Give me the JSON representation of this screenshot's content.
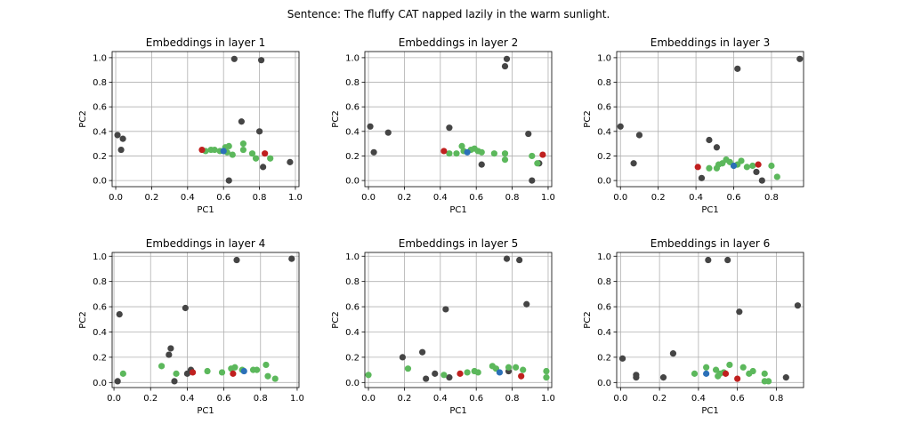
{
  "suptitle": "Sentence: The fluffy CAT napped lazily in the warm sunlight.",
  "colors": {
    "gray": "#454545",
    "green": "#5cb85c",
    "red": "#c0201f",
    "blue": "#2b70b8"
  },
  "chart_data": [
    {
      "type": "scatter",
      "title": "Embeddings in layer 1",
      "xlabel": "PC1",
      "ylabel": "PC2",
      "xlim": [
        -0.02,
        1.02
      ],
      "ylim": [
        -0.05,
        1.05
      ],
      "xticks": [
        "0.0",
        "0.2",
        "0.4",
        "0.6",
        "0.8",
        "1.0"
      ],
      "yticks": [
        "0.0",
        "0.2",
        "0.4",
        "0.6",
        "0.8",
        "1.0"
      ],
      "grid": true,
      "points": [
        {
          "x": 0.01,
          "y": 0.37,
          "c": "gray"
        },
        {
          "x": 0.04,
          "y": 0.34,
          "c": "gray"
        },
        {
          "x": 0.03,
          "y": 0.25,
          "c": "gray"
        },
        {
          "x": 0.66,
          "y": 0.99,
          "c": "gray"
        },
        {
          "x": 0.81,
          "y": 0.98,
          "c": "gray"
        },
        {
          "x": 0.7,
          "y": 0.48,
          "c": "gray"
        },
        {
          "x": 0.8,
          "y": 0.4,
          "c": "gray"
        },
        {
          "x": 0.97,
          "y": 0.15,
          "c": "gray"
        },
        {
          "x": 0.82,
          "y": 0.11,
          "c": "gray"
        },
        {
          "x": 0.63,
          "y": 0.0,
          "c": "gray"
        },
        {
          "x": 0.5,
          "y": 0.24,
          "c": "green"
        },
        {
          "x": 0.53,
          "y": 0.25,
          "c": "green"
        },
        {
          "x": 0.55,
          "y": 0.25,
          "c": "green"
        },
        {
          "x": 0.58,
          "y": 0.24,
          "c": "green"
        },
        {
          "x": 0.61,
          "y": 0.27,
          "c": "green"
        },
        {
          "x": 0.63,
          "y": 0.28,
          "c": "green"
        },
        {
          "x": 0.62,
          "y": 0.23,
          "c": "green"
        },
        {
          "x": 0.65,
          "y": 0.21,
          "c": "green"
        },
        {
          "x": 0.71,
          "y": 0.3,
          "c": "green"
        },
        {
          "x": 0.71,
          "y": 0.25,
          "c": "green"
        },
        {
          "x": 0.76,
          "y": 0.22,
          "c": "green"
        },
        {
          "x": 0.78,
          "y": 0.18,
          "c": "green"
        },
        {
          "x": 0.86,
          "y": 0.18,
          "c": "green"
        },
        {
          "x": 0.48,
          "y": 0.25,
          "c": "red"
        },
        {
          "x": 0.83,
          "y": 0.22,
          "c": "red"
        },
        {
          "x": 0.6,
          "y": 0.24,
          "c": "blue"
        }
      ]
    },
    {
      "type": "scatter",
      "title": "Embeddings in layer 2",
      "xlabel": "PC1",
      "ylabel": "PC2",
      "xlim": [
        -0.02,
        1.02
      ],
      "ylim": [
        -0.05,
        1.05
      ],
      "xticks": [
        "0.0",
        "0.2",
        "0.4",
        "0.6",
        "0.8",
        "1.0"
      ],
      "yticks": [
        "0.0",
        "0.2",
        "0.4",
        "0.6",
        "0.8",
        "1.0"
      ],
      "grid": true,
      "points": [
        {
          "x": 0.01,
          "y": 0.44,
          "c": "gray"
        },
        {
          "x": 0.03,
          "y": 0.23,
          "c": "gray"
        },
        {
          "x": 0.11,
          "y": 0.39,
          "c": "gray"
        },
        {
          "x": 0.45,
          "y": 0.43,
          "c": "gray"
        },
        {
          "x": 0.63,
          "y": 0.13,
          "c": "gray"
        },
        {
          "x": 0.76,
          "y": 0.93,
          "c": "gray"
        },
        {
          "x": 0.77,
          "y": 0.99,
          "c": "gray"
        },
        {
          "x": 0.89,
          "y": 0.38,
          "c": "gray"
        },
        {
          "x": 0.91,
          "y": 0.0,
          "c": "gray"
        },
        {
          "x": 0.95,
          "y": 0.14,
          "c": "gray"
        },
        {
          "x": 0.45,
          "y": 0.22,
          "c": "green"
        },
        {
          "x": 0.49,
          "y": 0.22,
          "c": "green"
        },
        {
          "x": 0.52,
          "y": 0.28,
          "c": "green"
        },
        {
          "x": 0.53,
          "y": 0.24,
          "c": "green"
        },
        {
          "x": 0.57,
          "y": 0.25,
          "c": "green"
        },
        {
          "x": 0.59,
          "y": 0.26,
          "c": "green"
        },
        {
          "x": 0.61,
          "y": 0.24,
          "c": "green"
        },
        {
          "x": 0.63,
          "y": 0.23,
          "c": "green"
        },
        {
          "x": 0.7,
          "y": 0.22,
          "c": "green"
        },
        {
          "x": 0.76,
          "y": 0.22,
          "c": "green"
        },
        {
          "x": 0.76,
          "y": 0.17,
          "c": "green"
        },
        {
          "x": 0.91,
          "y": 0.2,
          "c": "green"
        },
        {
          "x": 0.94,
          "y": 0.14,
          "c": "green"
        },
        {
          "x": 0.42,
          "y": 0.24,
          "c": "red"
        },
        {
          "x": 0.97,
          "y": 0.21,
          "c": "red"
        },
        {
          "x": 0.55,
          "y": 0.23,
          "c": "blue"
        }
      ]
    },
    {
      "type": "scatter",
      "title": "Embeddings in layer 3",
      "xlabel": "PC1",
      "ylabel": "PC2",
      "xlim": [
        -0.02,
        0.97
      ],
      "ylim": [
        -0.05,
        1.05
      ],
      "xticks": [
        "0.0",
        "0.2",
        "0.4",
        "0.6",
        "0.8"
      ],
      "yticks": [
        "0.0",
        "0.2",
        "0.4",
        "0.6",
        "0.8",
        "1.0"
      ],
      "grid": true,
      "points": [
        {
          "x": 0.0,
          "y": 0.44,
          "c": "gray"
        },
        {
          "x": 0.07,
          "y": 0.14,
          "c": "gray"
        },
        {
          "x": 0.1,
          "y": 0.37,
          "c": "gray"
        },
        {
          "x": 0.43,
          "y": 0.02,
          "c": "gray"
        },
        {
          "x": 0.47,
          "y": 0.33,
          "c": "gray"
        },
        {
          "x": 0.51,
          "y": 0.27,
          "c": "gray"
        },
        {
          "x": 0.62,
          "y": 0.91,
          "c": "gray"
        },
        {
          "x": 0.72,
          "y": 0.07,
          "c": "gray"
        },
        {
          "x": 0.75,
          "y": 0.0,
          "c": "gray"
        },
        {
          "x": 0.95,
          "y": 0.99,
          "c": "gray"
        },
        {
          "x": 0.47,
          "y": 0.1,
          "c": "green"
        },
        {
          "x": 0.51,
          "y": 0.1,
          "c": "green"
        },
        {
          "x": 0.52,
          "y": 0.13,
          "c": "green"
        },
        {
          "x": 0.54,
          "y": 0.14,
          "c": "green"
        },
        {
          "x": 0.56,
          "y": 0.17,
          "c": "green"
        },
        {
          "x": 0.58,
          "y": 0.15,
          "c": "green"
        },
        {
          "x": 0.6,
          "y": 0.12,
          "c": "green"
        },
        {
          "x": 0.62,
          "y": 0.13,
          "c": "green"
        },
        {
          "x": 0.64,
          "y": 0.16,
          "c": "green"
        },
        {
          "x": 0.67,
          "y": 0.11,
          "c": "green"
        },
        {
          "x": 0.7,
          "y": 0.12,
          "c": "green"
        },
        {
          "x": 0.8,
          "y": 0.12,
          "c": "green"
        },
        {
          "x": 0.83,
          "y": 0.03,
          "c": "green"
        },
        {
          "x": 0.41,
          "y": 0.11,
          "c": "red"
        },
        {
          "x": 0.73,
          "y": 0.13,
          "c": "red"
        },
        {
          "x": 0.6,
          "y": 0.12,
          "c": "blue"
        }
      ]
    },
    {
      "type": "scatter",
      "title": "Embeddings in layer 4",
      "xlabel": "PC1",
      "ylabel": "PC2",
      "xlim": [
        -0.01,
        1.01
      ],
      "ylim": [
        -0.04,
        1.03
      ],
      "xticks": [
        "0.0",
        "0.2",
        "0.4",
        "0.6",
        "0.8",
        "1.0"
      ],
      "yticks": [
        "0.0",
        "0.2",
        "0.4",
        "0.6",
        "0.8",
        "1.0"
      ],
      "grid": true,
      "points": [
        {
          "x": 0.03,
          "y": 0.54,
          "c": "gray"
        },
        {
          "x": 0.02,
          "y": 0.01,
          "c": "gray"
        },
        {
          "x": 0.3,
          "y": 0.22,
          "c": "gray"
        },
        {
          "x": 0.31,
          "y": 0.27,
          "c": "gray"
        },
        {
          "x": 0.33,
          "y": 0.01,
          "c": "gray"
        },
        {
          "x": 0.39,
          "y": 0.59,
          "c": "gray"
        },
        {
          "x": 0.4,
          "y": 0.07,
          "c": "gray"
        },
        {
          "x": 0.67,
          "y": 0.97,
          "c": "gray"
        },
        {
          "x": 0.97,
          "y": 0.98,
          "c": "gray"
        },
        {
          "x": 0.42,
          "y": 0.1,
          "c": "gray"
        },
        {
          "x": 0.05,
          "y": 0.07,
          "c": "green"
        },
        {
          "x": 0.26,
          "y": 0.13,
          "c": "green"
        },
        {
          "x": 0.34,
          "y": 0.07,
          "c": "green"
        },
        {
          "x": 0.51,
          "y": 0.09,
          "c": "green"
        },
        {
          "x": 0.59,
          "y": 0.08,
          "c": "green"
        },
        {
          "x": 0.64,
          "y": 0.11,
          "c": "green"
        },
        {
          "x": 0.66,
          "y": 0.12,
          "c": "green"
        },
        {
          "x": 0.7,
          "y": 0.1,
          "c": "green"
        },
        {
          "x": 0.76,
          "y": 0.1,
          "c": "green"
        },
        {
          "x": 0.78,
          "y": 0.1,
          "c": "green"
        },
        {
          "x": 0.83,
          "y": 0.14,
          "c": "green"
        },
        {
          "x": 0.84,
          "y": 0.05,
          "c": "green"
        },
        {
          "x": 0.88,
          "y": 0.03,
          "c": "green"
        },
        {
          "x": 0.43,
          "y": 0.08,
          "c": "red"
        },
        {
          "x": 0.65,
          "y": 0.07,
          "c": "red"
        },
        {
          "x": 0.71,
          "y": 0.09,
          "c": "blue"
        }
      ]
    },
    {
      "type": "scatter",
      "title": "Embeddings in layer 5",
      "xlabel": "PC1",
      "ylabel": "PC2",
      "xlim": [
        -0.02,
        1.02
      ],
      "ylim": [
        -0.04,
        1.03
      ],
      "xticks": [
        "0.0",
        "0.2",
        "0.4",
        "0.6",
        "0.8",
        "1.0"
      ],
      "yticks": [
        "0.0",
        "0.2",
        "0.4",
        "0.6",
        "0.8",
        "1.0"
      ],
      "grid": true,
      "points": [
        {
          "x": 0.19,
          "y": 0.2,
          "c": "gray"
        },
        {
          "x": 0.3,
          "y": 0.24,
          "c": "gray"
        },
        {
          "x": 0.32,
          "y": 0.03,
          "c": "gray"
        },
        {
          "x": 0.37,
          "y": 0.07,
          "c": "gray"
        },
        {
          "x": 0.43,
          "y": 0.58,
          "c": "gray"
        },
        {
          "x": 0.45,
          "y": 0.04,
          "c": "gray"
        },
        {
          "x": 0.77,
          "y": 0.98,
          "c": "gray"
        },
        {
          "x": 0.84,
          "y": 0.97,
          "c": "gray"
        },
        {
          "x": 0.88,
          "y": 0.62,
          "c": "gray"
        },
        {
          "x": 0.78,
          "y": 0.09,
          "c": "gray"
        },
        {
          "x": 0.0,
          "y": 0.06,
          "c": "green"
        },
        {
          "x": 0.22,
          "y": 0.11,
          "c": "green"
        },
        {
          "x": 0.42,
          "y": 0.06,
          "c": "green"
        },
        {
          "x": 0.55,
          "y": 0.08,
          "c": "green"
        },
        {
          "x": 0.59,
          "y": 0.09,
          "c": "green"
        },
        {
          "x": 0.61,
          "y": 0.08,
          "c": "green"
        },
        {
          "x": 0.69,
          "y": 0.13,
          "c": "green"
        },
        {
          "x": 0.71,
          "y": 0.11,
          "c": "green"
        },
        {
          "x": 0.78,
          "y": 0.12,
          "c": "green"
        },
        {
          "x": 0.82,
          "y": 0.12,
          "c": "green"
        },
        {
          "x": 0.86,
          "y": 0.1,
          "c": "green"
        },
        {
          "x": 0.99,
          "y": 0.09,
          "c": "green"
        },
        {
          "x": 0.99,
          "y": 0.04,
          "c": "green"
        },
        {
          "x": 0.51,
          "y": 0.07,
          "c": "red"
        },
        {
          "x": 0.85,
          "y": 0.05,
          "c": "red"
        },
        {
          "x": 0.73,
          "y": 0.08,
          "c": "blue"
        }
      ]
    },
    {
      "type": "scatter",
      "title": "Embeddings in layer 6",
      "xlabel": "PC1",
      "ylabel": "PC2",
      "xlim": [
        -0.02,
        0.94
      ],
      "ylim": [
        -0.04,
        1.03
      ],
      "xticks": [
        "0.0",
        "0.2",
        "0.4",
        "0.6",
        "0.8"
      ],
      "yticks": [
        "0.0",
        "0.2",
        "0.4",
        "0.6",
        "0.8",
        "1.0"
      ],
      "grid": true,
      "points": [
        {
          "x": 0.01,
          "y": 0.19,
          "c": "gray"
        },
        {
          "x": 0.08,
          "y": 0.06,
          "c": "gray"
        },
        {
          "x": 0.08,
          "y": 0.04,
          "c": "gray"
        },
        {
          "x": 0.22,
          "y": 0.04,
          "c": "gray"
        },
        {
          "x": 0.27,
          "y": 0.23,
          "c": "gray"
        },
        {
          "x": 0.45,
          "y": 0.97,
          "c": "gray"
        },
        {
          "x": 0.55,
          "y": 0.97,
          "c": "gray"
        },
        {
          "x": 0.61,
          "y": 0.56,
          "c": "gray"
        },
        {
          "x": 0.85,
          "y": 0.04,
          "c": "gray"
        },
        {
          "x": 0.91,
          "y": 0.61,
          "c": "gray"
        },
        {
          "x": 0.38,
          "y": 0.07,
          "c": "green"
        },
        {
          "x": 0.44,
          "y": 0.12,
          "c": "green"
        },
        {
          "x": 0.49,
          "y": 0.1,
          "c": "green"
        },
        {
          "x": 0.5,
          "y": 0.05,
          "c": "green"
        },
        {
          "x": 0.51,
          "y": 0.07,
          "c": "green"
        },
        {
          "x": 0.53,
          "y": 0.08,
          "c": "green"
        },
        {
          "x": 0.56,
          "y": 0.14,
          "c": "green"
        },
        {
          "x": 0.63,
          "y": 0.12,
          "c": "green"
        },
        {
          "x": 0.66,
          "y": 0.07,
          "c": "green"
        },
        {
          "x": 0.68,
          "y": 0.09,
          "c": "green"
        },
        {
          "x": 0.74,
          "y": 0.07,
          "c": "green"
        },
        {
          "x": 0.74,
          "y": 0.01,
          "c": "green"
        },
        {
          "x": 0.76,
          "y": 0.01,
          "c": "green"
        },
        {
          "x": 0.54,
          "y": 0.07,
          "c": "red"
        },
        {
          "x": 0.6,
          "y": 0.03,
          "c": "red"
        },
        {
          "x": 0.44,
          "y": 0.07,
          "c": "blue"
        }
      ]
    }
  ]
}
